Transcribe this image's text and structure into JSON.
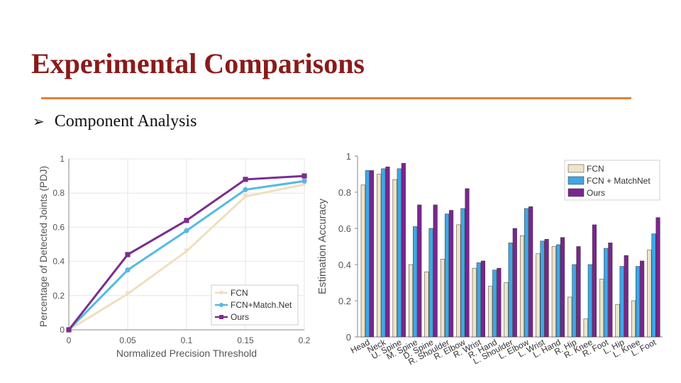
{
  "slide": {
    "title": "Experimental Comparisons",
    "bullet_text": "Component Analysis"
  },
  "chart_data": [
    {
      "type": "line",
      "xlabel": "Normalized Precision Threshold",
      "ylabel": "Percentage of Detected Joints (PDJ)",
      "x": [
        0,
        0.05,
        0.1,
        0.15,
        0.2
      ],
      "x_tick_labels": [
        "0",
        "0.05",
        "0.1",
        "0.15",
        "0.2"
      ],
      "y_tick_labels": [
        "0",
        "0.2",
        "0.4",
        "0.6",
        "0.8",
        "1"
      ],
      "xlim": [
        0,
        0.2
      ],
      "ylim": [
        0,
        1
      ],
      "grid": true,
      "legend_position": "bottom-right",
      "series": [
        {
          "name": "FCN",
          "color": "#efdfbf",
          "marker": "triangle-down",
          "values": [
            0,
            0.21,
            0.46,
            0.78,
            0.85
          ]
        },
        {
          "name": "FCN+Match.Net",
          "color": "#55b9e3",
          "marker": "circle",
          "values": [
            0,
            0.35,
            0.58,
            0.82,
            0.87
          ]
        },
        {
          "name": "Ours",
          "color": "#7b2d8e",
          "marker": "square",
          "values": [
            0,
            0.44,
            0.64,
            0.88,
            0.9
          ]
        }
      ]
    },
    {
      "type": "bar",
      "ylabel": "Estimation Accuracy",
      "ylim": [
        0,
        1
      ],
      "y_tick_labels": [
        "0",
        "0.2",
        "0.4",
        "0.6",
        "0.8",
        "1"
      ],
      "legend_position": "top-right",
      "categories": [
        "Head",
        "Neck",
        "U. Spine",
        "M. Spine",
        "D. Spine",
        "R. Shoulder",
        "R. Elbow",
        "R. Wrist",
        "R. Hand",
        "L. Shoulder",
        "L. Elbow",
        "L. Wrist",
        "L. Hand",
        "R. Hip",
        "R. Knee",
        "R. Foot",
        "L. Hip",
        "L. Knee",
        "L. Foot"
      ],
      "series": [
        {
          "name": "FCN",
          "color": "#efe3c8",
          "values": [
            0.84,
            0.9,
            0.87,
            0.4,
            0.36,
            0.43,
            0.62,
            0.38,
            0.28,
            0.3,
            0.56,
            0.46,
            0.5,
            0.22,
            0.1,
            0.32,
            0.18,
            0.2,
            0.48
          ]
        },
        {
          "name": "FCN + MatchNet",
          "color": "#3ea8e5",
          "values": [
            0.92,
            0.93,
            0.93,
            0.61,
            0.6,
            0.68,
            0.71,
            0.41,
            0.37,
            0.52,
            0.71,
            0.53,
            0.51,
            0.4,
            0.4,
            0.49,
            0.39,
            0.39,
            0.57
          ]
        },
        {
          "name": "Ours",
          "color": "#7b2590",
          "values": [
            0.92,
            0.94,
            0.96,
            0.73,
            0.73,
            0.7,
            0.82,
            0.42,
            0.38,
            0.6,
            0.72,
            0.54,
            0.55,
            0.5,
            0.62,
            0.52,
            0.45,
            0.42,
            0.66
          ]
        }
      ]
    }
  ]
}
